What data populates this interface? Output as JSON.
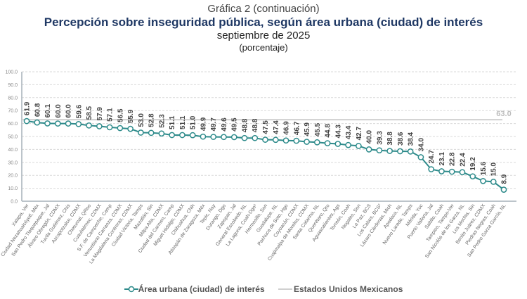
{
  "header": {
    "sup": "Gráfica 2 (continuación)",
    "title": "Percepción sobre inseguridad pública, según área urbana (ciudad) de interés",
    "subtitle": "septiembre de 2025",
    "unit": "(porcentaje)"
  },
  "colors": {
    "series": "#2e8b8b",
    "national": "#d0d0d0",
    "national_label": "#bdbdbd",
    "grid": "#d9d9d9",
    "axis": "#a6b0b8",
    "tick_text": "#888888",
    "label_text": "#444444"
  },
  "chart_data": {
    "type": "line",
    "title": "Percepción sobre inseguridad pública, según área urbana (ciudad) de interés",
    "xlabel": "",
    "ylabel": "",
    "ylim": [
      0,
      100
    ],
    "yticks": [
      "0.0",
      "10.0",
      "20.0",
      "30.0",
      "40.0",
      "50.0",
      "60.0",
      "70.0",
      "80.0",
      "90.0",
      "100.0"
    ],
    "grid": true,
    "legend_position": "bottom",
    "categories": [
      "Xalapa, Ver",
      "Ciudad Nezahualcóyotl, Méx",
      "San Pedro Tlaquepaque, Jal",
      "Álvaro Obregón, CDMX",
      "Tuxtla Gutiérrez, Chis",
      "Azcapotzalco, CDMX",
      "Chetumal, QRoo",
      "Cuauhtémoc, CDMX",
      "S.F. de Campeche, Camp",
      "Venustiano Carranza, CDMX",
      "La Magdalena Contreras, CDMX",
      "Ciudad Victoria, Tamps",
      "Mazatlán, Sin",
      "Milpa Alta, CDMX",
      "Ciudad del Carmen, Camp",
      "Miguel Hidalgo, CDMX",
      "Chihuahua, Chih",
      "Atizapán de Zaragoza, Méx",
      "Tepic, Nay",
      "Durango, Dgo",
      "Zapopan, Jal",
      "General Escobedo, NL",
      "La Laguna, Coah-Dgo¹",
      "Hermosillo, Son",
      "Guadalupe, NL",
      "Pachuca de Soto, Hgo",
      "Coyoacán, CDMX",
      "Cuajimalpa de Morelos, CDMX",
      "Santa Catarina, NL",
      "Querétaro, Qro",
      "Aguascalientes, Ags",
      "Torreón, Coah",
      "Nogales, Son",
      "La Paz, BCS",
      "Los Cabos, BCS²",
      "Lázaro Cárdenas, Mich",
      "Apodaca, NL",
      "Nuevo Laredo, Tamps",
      "Mérida, Yuc",
      "Puerto Vallarta, Jal",
      "Saltillo, Coah",
      "Tampico, Tamps-Ver",
      "San Nicolás de los Garza, NL",
      "Los Mochis, Sin",
      "Benito Juárez, CDMX",
      "Piedras Negras, Coah",
      "San Pedro Garza García, NL"
    ],
    "series": [
      {
        "name": "Área urbana (ciudad) de interés",
        "values": [
          61.9,
          60.8,
          60.1,
          60.0,
          60.0,
          59.6,
          58.5,
          57.9,
          57.1,
          56.5,
          55.9,
          53.0,
          52.8,
          52.3,
          51.1,
          51.1,
          51.0,
          49.9,
          49.7,
          49.6,
          49.5,
          48.8,
          48.8,
          47.5,
          47.4,
          46.9,
          46.7,
          45.9,
          45.5,
          44.8,
          44.3,
          43.4,
          42.7,
          40.0,
          39.3,
          38.8,
          38.6,
          38.4,
          34.0,
          24.7,
          23.1,
          22.8,
          22.4,
          19.2,
          15.6,
          15.0,
          8.9
        ]
      },
      {
        "name": "Estados Unidos Mexicanos",
        "value": 63.0,
        "value_label": "63.0"
      }
    ]
  },
  "legend": {
    "item1": "Área urbana (ciudad) de interés",
    "item2": "Estados Unidos Mexicanos"
  }
}
